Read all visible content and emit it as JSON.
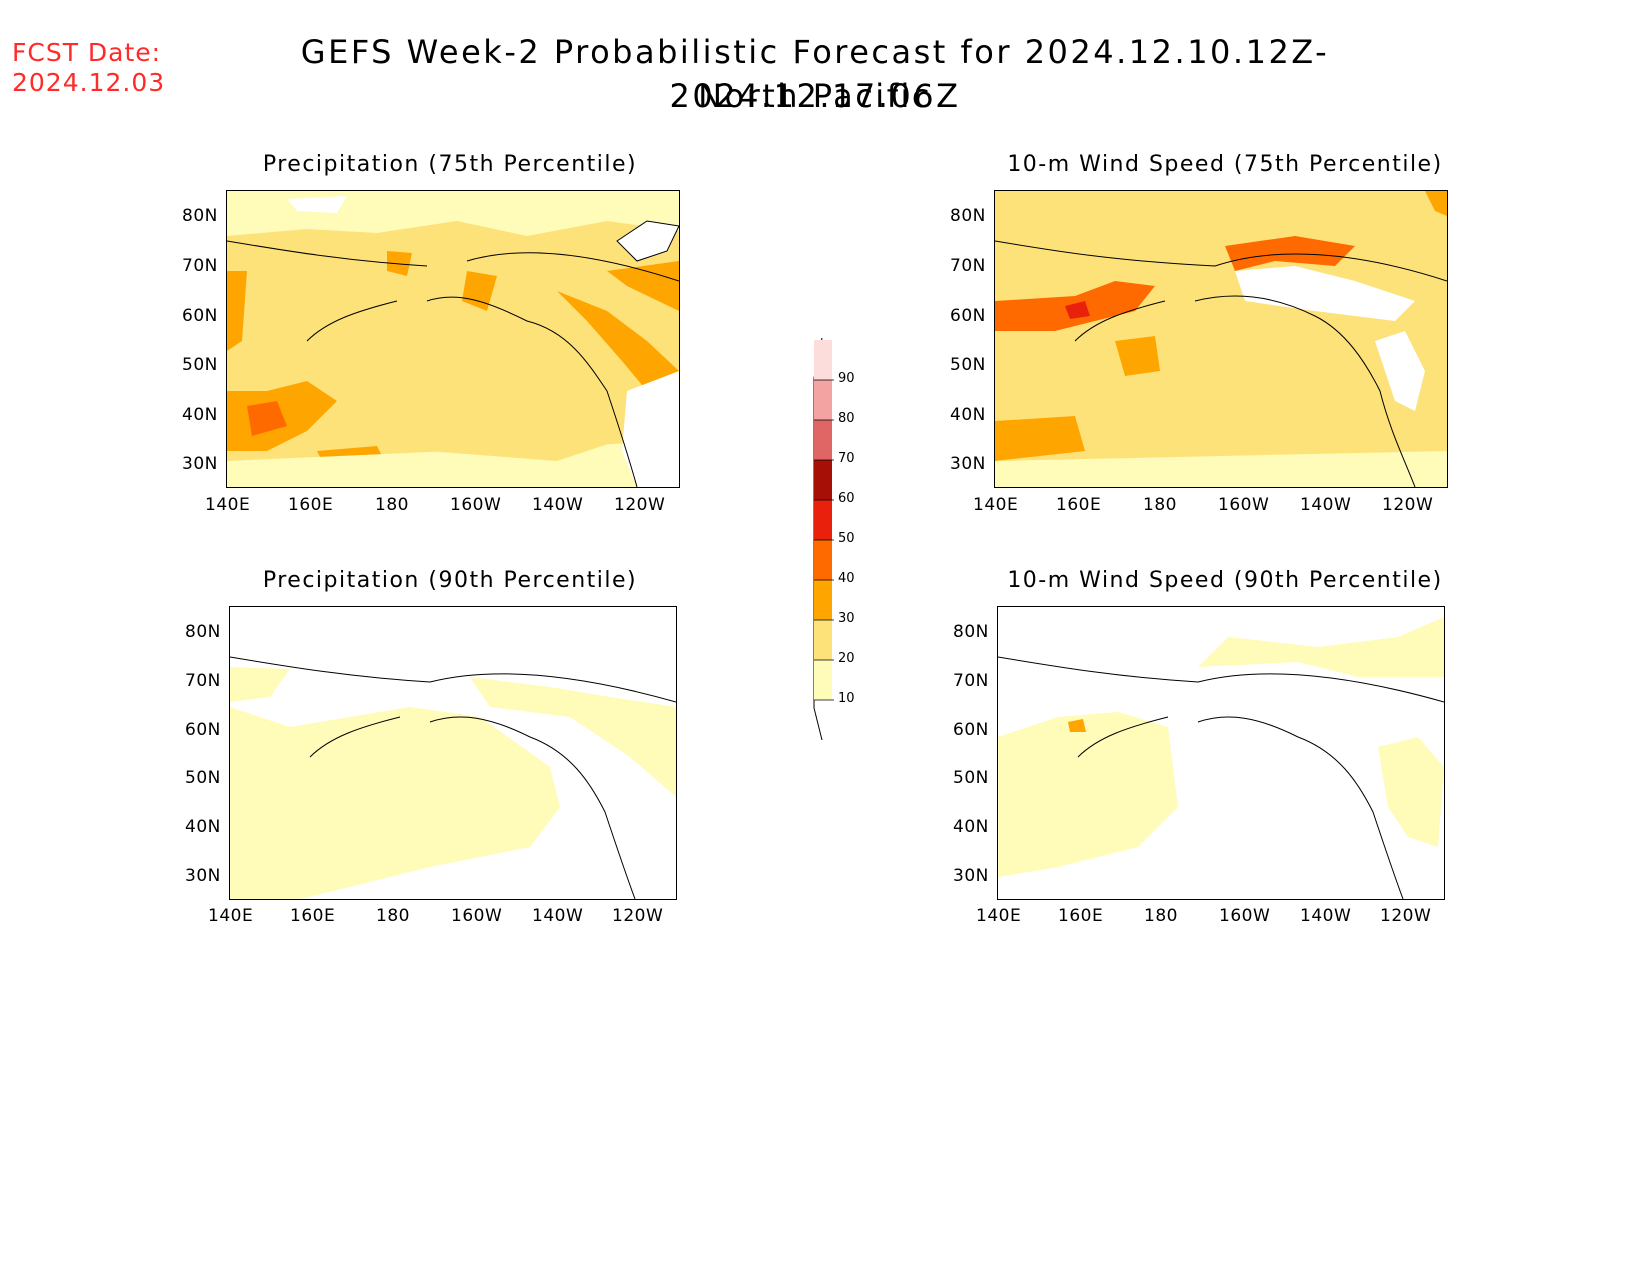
{
  "header": {
    "fcst_label": "FCST Date:",
    "fcst_date": "2024.12.03",
    "title_line1": "GEFS Week-2 Probabilistic Forecast for 2024.12.10.12Z-2024.12.17.06Z",
    "title_line2": "North Pacific"
  },
  "panels": [
    {
      "id": "precip-75",
      "title": "Precipitation (75th Percentile)"
    },
    {
      "id": "wind-75",
      "title": "10-m Wind Speed (75th Percentile)"
    },
    {
      "id": "precip-90",
      "title": "Precipitation (90th Percentile)"
    },
    {
      "id": "wind-90",
      "title": "10-m Wind Speed (90th Percentile)"
    }
  ],
  "axes": {
    "lat_labels": [
      "80N",
      "70N",
      "60N",
      "50N",
      "40N",
      "30N"
    ],
    "lon_labels": [
      "140E",
      "160E",
      "180",
      "160W",
      "140W",
      "120W"
    ]
  },
  "colorbar": {
    "levels": [
      "10",
      "20",
      "30",
      "40",
      "50",
      "60",
      "70",
      "80",
      "90"
    ],
    "colors": [
      "#fffbb8",
      "#fde27a",
      "#ffa500",
      "#ff6a00",
      "#e8200c",
      "#a50f06",
      "#e06666",
      "#f4a3a3",
      "#fddcdc"
    ]
  }
}
